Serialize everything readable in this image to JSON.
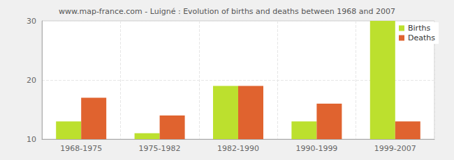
{
  "chart_data": {
    "type": "bar",
    "title": "www.map-france.com - Luigné : Evolution of births and deaths between 1968 and 2007",
    "categories": [
      "1968-1975",
      "1975-1982",
      "1982-1990",
      "1990-1999",
      "1999-2007"
    ],
    "series": [
      {
        "name": "Births",
        "color": "#bce02e",
        "values": [
          13,
          11,
          19,
          13,
          30
        ]
      },
      {
        "name": "Deaths",
        "color": "#e0632f",
        "values": [
          17,
          14,
          19,
          16,
          13
        ]
      }
    ],
    "ylim": [
      10,
      30
    ],
    "yticks": [
      10,
      20,
      30
    ],
    "grid": true,
    "legend": "top-right"
  }
}
